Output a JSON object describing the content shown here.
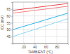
{
  "chart_data": {
    "type": "line",
    "x_label": "TAMBIENT (°C)",
    "y_label": "ICC (mA)",
    "x": [
      0,
      20,
      40,
      60,
      80,
      100
    ],
    "series": [
      {
        "color": "#e8464a",
        "values": [
          64,
          65,
          66,
          67,
          68,
          69
        ]
      },
      {
        "color": "#f28080",
        "values": [
          62,
          63,
          64,
          65,
          66,
          67
        ]
      },
      {
        "color": "#29b6e8",
        "values": [
          50,
          52.4,
          54.8,
          57.2,
          59.6,
          62
        ]
      },
      {
        "color": "#8dd8f2",
        "values": [
          45,
          47.6,
          50.2,
          52.8,
          55.4,
          58
        ]
      }
    ],
    "xlim": [
      0,
      100
    ],
    "xticks": [
      20,
      40,
      60,
      80
    ],
    "ylim": [
      40,
      70
    ],
    "yticks": [
      45,
      50,
      55,
      60,
      65
    ],
    "grid": true
  }
}
